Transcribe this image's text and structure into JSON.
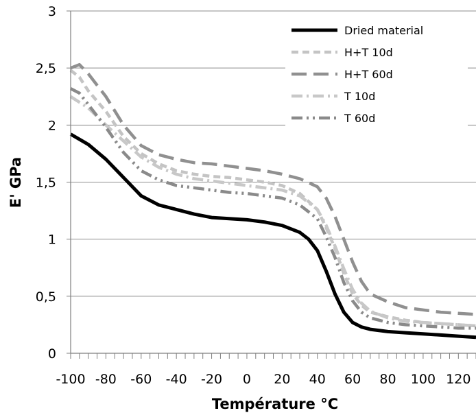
{
  "chart_data": {
    "type": "line",
    "xlabel": "Température °C",
    "ylabel": "E' GPa",
    "xlim": [
      -100,
      130
    ],
    "ylim": [
      0,
      3
    ],
    "xticks": [
      -100,
      -80,
      -60,
      -40,
      -20,
      0,
      20,
      40,
      60,
      80,
      100,
      120
    ],
    "xtick_labels": [
      "-100",
      "-80",
      "-60",
      "-40",
      "-20",
      "0",
      "20",
      "40",
      "60",
      "80",
      "100",
      "120"
    ],
    "yticks": [
      0,
      0.5,
      1,
      1.5,
      2,
      2.5,
      3
    ],
    "ytick_labels": [
      "0",
      "0,5",
      "1",
      "1,5",
      "2",
      "2,5",
      "3"
    ],
    "grid": "horizontal",
    "legend_position": "top-right",
    "series": [
      {
        "name": "Dried material",
        "color": "#000000",
        "dash": "solid",
        "points": [
          [
            -100,
            1.92
          ],
          [
            -90,
            1.83
          ],
          [
            -80,
            1.7
          ],
          [
            -70,
            1.54
          ],
          [
            -60,
            1.38
          ],
          [
            -50,
            1.3
          ],
          [
            -40,
            1.26
          ],
          [
            -30,
            1.22
          ],
          [
            -20,
            1.19
          ],
          [
            -10,
            1.18
          ],
          [
            0,
            1.17
          ],
          [
            10,
            1.15
          ],
          [
            20,
            1.12
          ],
          [
            30,
            1.06
          ],
          [
            35,
            1.0
          ],
          [
            40,
            0.9
          ],
          [
            45,
            0.72
          ],
          [
            50,
            0.52
          ],
          [
            55,
            0.36
          ],
          [
            60,
            0.27
          ],
          [
            65,
            0.23
          ],
          [
            70,
            0.21
          ],
          [
            80,
            0.19
          ],
          [
            90,
            0.18
          ],
          [
            100,
            0.17
          ],
          [
            110,
            0.16
          ],
          [
            120,
            0.15
          ],
          [
            130,
            0.14
          ]
        ]
      },
      {
        "name": "H+T 10d",
        "color": "#c4c4c4",
        "dash": "dashed",
        "points": [
          [
            -100,
            2.48
          ],
          [
            -95,
            2.42
          ],
          [
            -90,
            2.3
          ],
          [
            -80,
            2.12
          ],
          [
            -70,
            1.9
          ],
          [
            -60,
            1.75
          ],
          [
            -50,
            1.66
          ],
          [
            -40,
            1.6
          ],
          [
            -30,
            1.57
          ],
          [
            -20,
            1.55
          ],
          [
            -10,
            1.54
          ],
          [
            0,
            1.52
          ],
          [
            10,
            1.5
          ],
          [
            20,
            1.47
          ],
          [
            30,
            1.4
          ],
          [
            40,
            1.26
          ],
          [
            45,
            1.1
          ],
          [
            50,
            0.92
          ],
          [
            55,
            0.7
          ],
          [
            60,
            0.52
          ],
          [
            65,
            0.42
          ],
          [
            70,
            0.36
          ],
          [
            80,
            0.32
          ],
          [
            90,
            0.29
          ],
          [
            100,
            0.27
          ],
          [
            110,
            0.26
          ],
          [
            120,
            0.25
          ],
          [
            130,
            0.24
          ]
        ]
      },
      {
        "name": "H+T 60d",
        "color": "#909090",
        "dash": "longdash",
        "points": [
          [
            -100,
            2.5
          ],
          [
            -95,
            2.53
          ],
          [
            -90,
            2.45
          ],
          [
            -80,
            2.25
          ],
          [
            -70,
            2.0
          ],
          [
            -60,
            1.82
          ],
          [
            -50,
            1.74
          ],
          [
            -40,
            1.7
          ],
          [
            -30,
            1.67
          ],
          [
            -20,
            1.66
          ],
          [
            -10,
            1.64
          ],
          [
            0,
            1.62
          ],
          [
            10,
            1.6
          ],
          [
            20,
            1.57
          ],
          [
            30,
            1.53
          ],
          [
            40,
            1.46
          ],
          [
            45,
            1.36
          ],
          [
            50,
            1.2
          ],
          [
            55,
            1.0
          ],
          [
            60,
            0.8
          ],
          [
            65,
            0.63
          ],
          [
            70,
            0.52
          ],
          [
            80,
            0.45
          ],
          [
            90,
            0.4
          ],
          [
            100,
            0.38
          ],
          [
            110,
            0.36
          ],
          [
            120,
            0.35
          ],
          [
            130,
            0.34
          ]
        ]
      },
      {
        "name": "T 10d",
        "color": "#c8c8c8",
        "dash": "dashdot",
        "points": [
          [
            -100,
            2.25
          ],
          [
            -90,
            2.15
          ],
          [
            -80,
            2.0
          ],
          [
            -70,
            1.86
          ],
          [
            -60,
            1.72
          ],
          [
            -50,
            1.63
          ],
          [
            -40,
            1.57
          ],
          [
            -30,
            1.53
          ],
          [
            -20,
            1.51
          ],
          [
            -10,
            1.49
          ],
          [
            0,
            1.47
          ],
          [
            10,
            1.45
          ],
          [
            20,
            1.43
          ],
          [
            30,
            1.38
          ],
          [
            40,
            1.26
          ],
          [
            45,
            1.12
          ],
          [
            50,
            0.94
          ],
          [
            55,
            0.74
          ],
          [
            60,
            0.56
          ],
          [
            65,
            0.44
          ],
          [
            70,
            0.37
          ],
          [
            80,
            0.31
          ],
          [
            90,
            0.28
          ],
          [
            100,
            0.27
          ],
          [
            110,
            0.26
          ],
          [
            120,
            0.25
          ],
          [
            130,
            0.24
          ]
        ]
      },
      {
        "name": "T 60d",
        "color": "#8a8a8a",
        "dash": "dashdotdot",
        "points": [
          [
            -100,
            2.32
          ],
          [
            -95,
            2.28
          ],
          [
            -90,
            2.18
          ],
          [
            -80,
            1.98
          ],
          [
            -70,
            1.76
          ],
          [
            -60,
            1.6
          ],
          [
            -50,
            1.52
          ],
          [
            -40,
            1.47
          ],
          [
            -30,
            1.45
          ],
          [
            -20,
            1.43
          ],
          [
            -10,
            1.41
          ],
          [
            0,
            1.4
          ],
          [
            10,
            1.38
          ],
          [
            20,
            1.36
          ],
          [
            30,
            1.3
          ],
          [
            40,
            1.18
          ],
          [
            45,
            1.02
          ],
          [
            50,
            0.84
          ],
          [
            55,
            0.62
          ],
          [
            60,
            0.46
          ],
          [
            65,
            0.36
          ],
          [
            70,
            0.31
          ],
          [
            80,
            0.27
          ],
          [
            90,
            0.25
          ],
          [
            100,
            0.24
          ],
          [
            110,
            0.23
          ],
          [
            120,
            0.22
          ],
          [
            130,
            0.22
          ]
        ]
      }
    ]
  }
}
